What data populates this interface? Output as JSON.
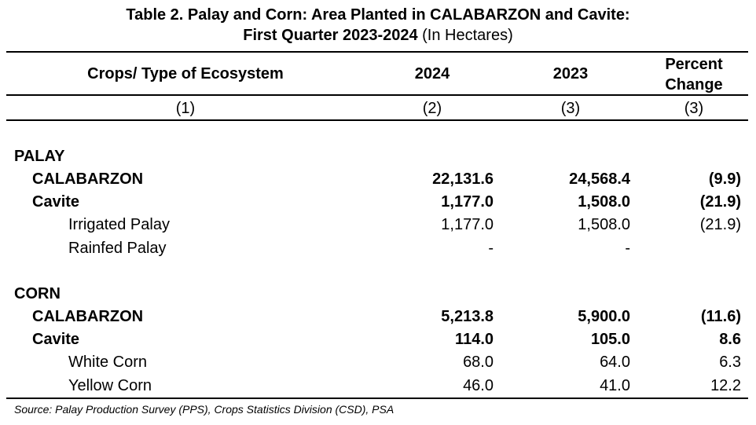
{
  "title": {
    "line1": "Table 2. Palay and Corn: Area Planted in CALABARZON and Cavite:",
    "line2_bold": "First Quarter 2023-2024",
    "line2_normal": " (In Hectares)"
  },
  "header": {
    "crop": "Crops/ Type of Ecosystem",
    "y2024": "2024",
    "y2023": "2023",
    "pct_line1": "Percent",
    "pct_line2": "Change"
  },
  "column_numbers": [
    "(1)",
    "(2)",
    "(3)",
    "(3)"
  ],
  "rows": [
    {
      "label": "PALAY",
      "v2024": "",
      "v2023": "",
      "pct": ""
    },
    {
      "label": "CALABARZON",
      "v2024": "22,131.6",
      "v2023": "24,568.4",
      "pct": "(9.9)"
    },
    {
      "label": "Cavite",
      "v2024": "1,177.0",
      "v2023": "1,508.0",
      "pct": "(21.9)"
    },
    {
      "label": "Irrigated Palay",
      "v2024": "1,177.0",
      "v2023": "1,508.0",
      "pct": "(21.9)"
    },
    {
      "label": "Rainfed Palay",
      "v2024": "-",
      "v2023": "-",
      "pct": ""
    },
    {
      "label": "CORN",
      "v2024": "",
      "v2023": "",
      "pct": ""
    },
    {
      "label": "CALABARZON",
      "v2024": "5,213.8",
      "v2023": "5,900.0",
      "pct": "(11.6)"
    },
    {
      "label": "Cavite",
      "v2024": "114.0",
      "v2023": "105.0",
      "pct": "8.6"
    },
    {
      "label": "White Corn",
      "v2024": "68.0",
      "v2023": "64.0",
      "pct": "6.3"
    },
    {
      "label": "Yellow Corn",
      "v2024": "46.0",
      "v2023": "41.0",
      "pct": "12.2"
    }
  ],
  "source": "Source: Palay Production Survey (PPS), Crops Statistics Division (CSD), PSA"
}
